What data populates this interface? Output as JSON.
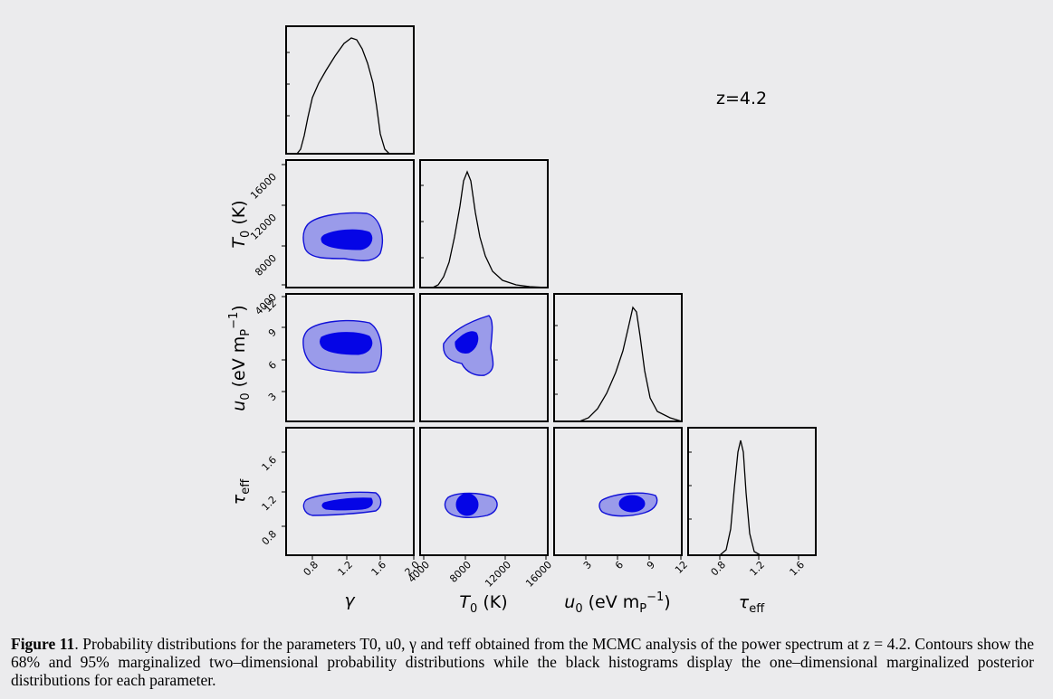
{
  "figure": {
    "redshift_label": "z=4.2",
    "caption_label": "Figure 11",
    "caption_text": ". Probability distributions for the parameters T0, u0, γ and τeff obtained from the MCMC analysis of the power spectrum at z = 4.2. Contours show the 68% and 95% marginalized two–dimensional probability distributions while the black histograms display the one–dimensional marginalized posterior distributions for each parameter."
  },
  "colors": {
    "contour_95_fill": "#9a9bea",
    "contour_edge": "#1010d8",
    "contour_68_fill": "#0505e6",
    "histogram": "#000000"
  },
  "chart_data": {
    "type": "corner",
    "parameters": [
      {
        "key": "gamma",
        "label": "γ",
        "range": [
          0.5,
          2.0
        ],
        "ticks": [
          0.8,
          1.2,
          1.6,
          2.0
        ],
        "tick_labels": [
          "0.8",
          "1.2",
          "1.6",
          "2.0"
        ]
      },
      {
        "key": "T0",
        "label": "T0 (K)",
        "range": [
          3500,
          16000
        ],
        "ticks": [
          4000,
          8000,
          12000,
          16000
        ],
        "tick_labels": [
          "4000",
          "8000",
          "12000",
          "16000"
        ]
      },
      {
        "key": "u0",
        "label": "u0 (eV mP−1)",
        "range": [
          0,
          12
        ],
        "ticks": [
          3,
          6,
          9,
          12
        ],
        "tick_labels": [
          "3",
          "6",
          "9",
          "12"
        ]
      },
      {
        "key": "tau",
        "label": "τeff",
        "range": [
          0.6,
          1.8
        ],
        "ticks": [
          0.8,
          1.2,
          1.6
        ],
        "tick_labels": [
          "0.8",
          "1.2",
          "1.6"
        ]
      }
    ],
    "histograms": {
      "gamma": {
        "peak": 1.25,
        "shape": "skewed, broad, range 0.62–1.62"
      },
      "T0": {
        "peak": 7900,
        "shape": "peaked with long tail to high T0"
      },
      "u0": {
        "peak": 7.4,
        "shape": "skewed left, sharp drop above peak"
      },
      "tau": {
        "peak": 1.0,
        "shape": "narrow, sigma≈0.045"
      }
    },
    "contours": {
      "T0_vs_gamma": {
        "center": [
          1.2,
          8300
        ],
        "levels": [
          "68%",
          "95%"
        ]
      },
      "u0_vs_gamma": {
        "center": [
          1.2,
          7.2
        ],
        "levels": [
          "68%",
          "95%"
        ]
      },
      "u0_vs_T0": {
        "center": [
          8000,
          7.2
        ],
        "levels": [
          "68%",
          "95%"
        ]
      },
      "tau_vs_gamma": {
        "center": [
          1.2,
          1.03
        ],
        "levels": [
          "68%",
          "95%"
        ]
      },
      "tau_vs_T0": {
        "center": [
          8000,
          1.02
        ],
        "levels": [
          "68%",
          "95%"
        ]
      },
      "tau_vs_u0": {
        "center": [
          7.2,
          1.02
        ],
        "levels": [
          "68%",
          "95%"
        ]
      }
    },
    "legend_placement": "top-right text label",
    "grid": false
  }
}
